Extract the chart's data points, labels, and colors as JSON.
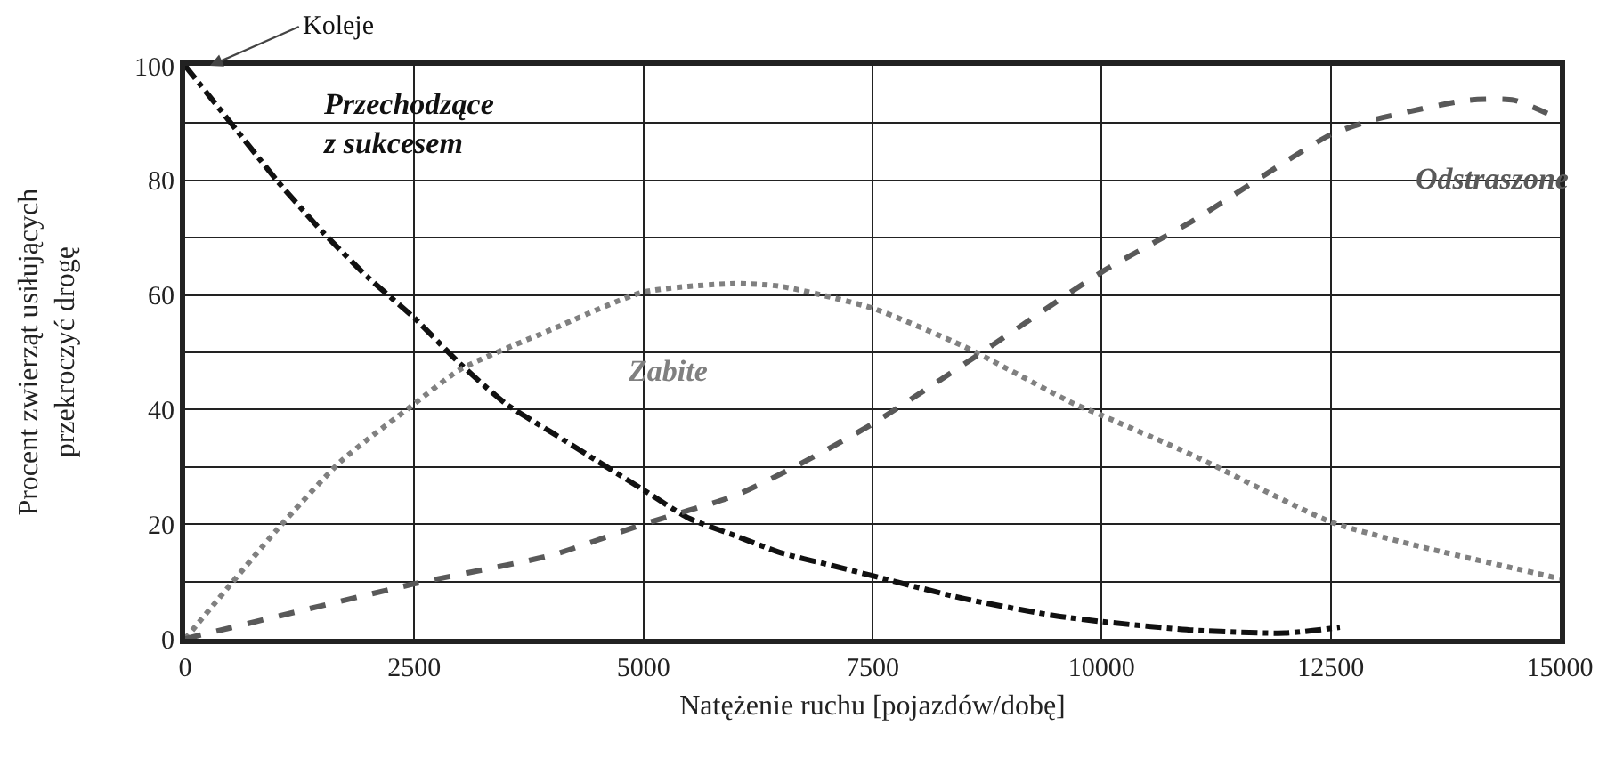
{
  "chart_data": {
    "type": "line",
    "xlabel": "Natężenie ruchu [pojazdów/dobę]",
    "ylabel": "Procent zwierząt usiłujących przekroczyć drogę",
    "xlim": [
      0,
      15000
    ],
    "xticks": [
      0,
      2500,
      5000,
      7500,
      10000,
      12500,
      15000
    ],
    "ylim": [
      0,
      100
    ],
    "yticks": [
      0,
      {
        "value": 10,
        "label": null
      },
      20,
      {
        "value": 30,
        "label": null
      },
      40,
      {
        "value": 50,
        "label": null
      },
      60,
      {
        "value": 70,
        "label": null
      },
      80,
      {
        "value": 90,
        "label": null
      },
      100
    ],
    "grid": true,
    "legend": false,
    "marker": "none",
    "series": [
      {
        "name": "Przechodzące z sukcesem",
        "color": "#111111",
        "line_style": "dashdot",
        "x": [
          0,
          500,
          1000,
          1500,
          2000,
          2500,
          3000,
          3500,
          4000,
          4500,
          5000,
          5500,
          6000,
          6500,
          7000,
          7500,
          8500,
          9500,
          10000,
          11000,
          12000,
          12600
        ],
        "values": [
          100,
          90,
          80,
          71,
          63,
          56,
          48,
          41,
          36,
          31,
          26,
          21,
          18,
          15,
          13,
          11,
          7,
          4,
          3,
          1.5,
          1,
          2
        ]
      },
      {
        "name": "Zabite",
        "color": "#808080",
        "line_style": "dotted",
        "x": [
          0,
          1000,
          1700,
          2500,
          3000,
          4000,
          5000,
          6000,
          6500,
          7500,
          8500,
          9700,
          10000,
          11000,
          12500,
          13500,
          15000
        ],
        "values": [
          0,
          19,
          31,
          41,
          47,
          54,
          60.5,
          62,
          61.5,
          57.7,
          51,
          41,
          39,
          32,
          20.4,
          16,
          10.5
        ]
      },
      {
        "name": "Odstraszone",
        "color": "#595959",
        "line_style": "dashed",
        "x": [
          0,
          2500,
          4000,
          5000,
          6000,
          6650,
          7500,
          8600,
          10000,
          11000,
          12500,
          13000,
          14000,
          14500,
          15000
        ],
        "values": [
          0,
          9.6,
          14.6,
          20,
          25,
          30,
          37.5,
          49,
          64,
          73,
          88,
          90.7,
          94,
          94,
          90.7
        ]
      }
    ],
    "annotations": [
      "Koleje"
    ]
  }
}
